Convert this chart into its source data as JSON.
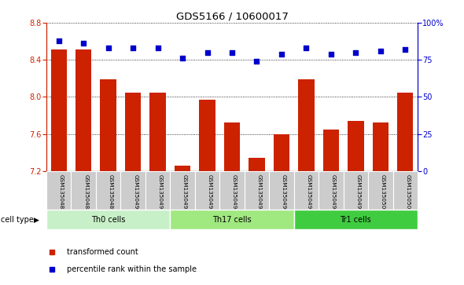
{
  "title": "GDS5166 / 10600017",
  "samples": [
    "GSM1350487",
    "GSM1350488",
    "GSM1350489",
    "GSM1350490",
    "GSM1350491",
    "GSM1350492",
    "GSM1350493",
    "GSM1350494",
    "GSM1350495",
    "GSM1350496",
    "GSM1350497",
    "GSM1350498",
    "GSM1350499",
    "GSM1350500",
    "GSM1350501"
  ],
  "bar_values": [
    8.51,
    8.51,
    8.19,
    8.05,
    8.05,
    7.26,
    7.97,
    7.72,
    7.34,
    7.6,
    8.19,
    7.65,
    7.74,
    7.72,
    8.05
  ],
  "percentile_values": [
    88,
    86,
    83,
    83,
    83,
    76,
    80,
    80,
    74,
    79,
    83,
    79,
    80,
    81,
    82
  ],
  "cell_groups": [
    {
      "label": "Th0 cells",
      "start": 0,
      "end": 5,
      "color": "#c8f0c8"
    },
    {
      "label": "Th17 cells",
      "start": 5,
      "end": 10,
      "color": "#a0e880"
    },
    {
      "label": "Tr1 cells",
      "start": 10,
      "end": 15,
      "color": "#40cc40"
    }
  ],
  "ylim_left": [
    7.2,
    8.8
  ],
  "ylim_right": [
    0,
    100
  ],
  "yticks_left": [
    7.2,
    7.6,
    8.0,
    8.4,
    8.8
  ],
  "yticks_right": [
    0,
    25,
    50,
    75,
    100
  ],
  "bar_color": "#cc2200",
  "dot_color": "#0000cc",
  "background_color": "#ffffff",
  "tick_area_bg": "#cccccc",
  "legend_items": [
    {
      "label": "transformed count",
      "color": "#cc2200"
    },
    {
      "label": "percentile rank within the sample",
      "color": "#0000cc"
    }
  ]
}
